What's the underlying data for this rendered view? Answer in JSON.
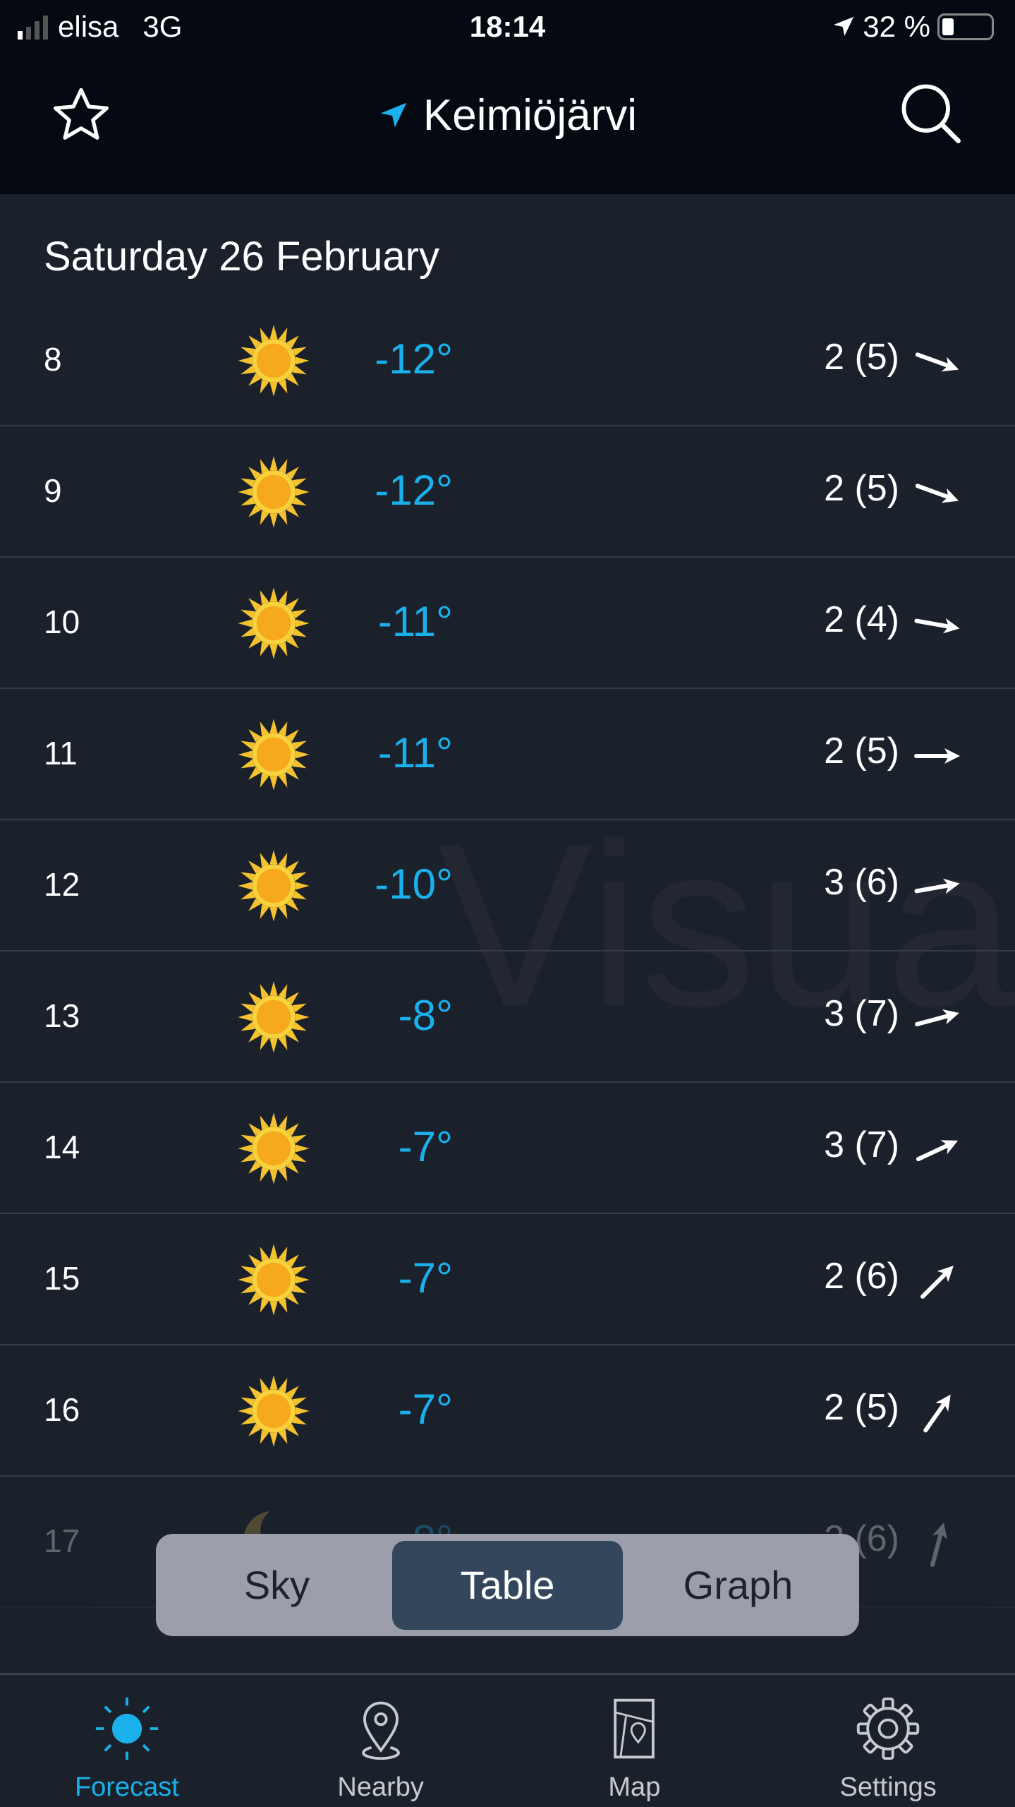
{
  "status": {
    "carrier": "elisa",
    "network": "3G",
    "time": "18:14",
    "battery": "32 %",
    "battery_level": 0.32
  },
  "header": {
    "title": "Keimiöjärvi",
    "favorite_icon": "star-icon",
    "search_icon": "search-icon",
    "location_icon": "location-arrow-icon",
    "accent": "#1ab0ec"
  },
  "date_heading": "Saturday 26 February",
  "watermark": "Visua",
  "rows": [
    {
      "hour": "8",
      "icon": "sun",
      "temp": "-12°",
      "wind": "2 (5)",
      "wind_dir_deg": 110
    },
    {
      "hour": "9",
      "icon": "sun",
      "temp": "-12°",
      "wind": "2 (5)",
      "wind_dir_deg": 110
    },
    {
      "hour": "10",
      "icon": "sun",
      "temp": "-11°",
      "wind": "2 (4)",
      "wind_dir_deg": 100
    },
    {
      "hour": "11",
      "icon": "sun",
      "temp": "-11°",
      "wind": "2 (5)",
      "wind_dir_deg": 90
    },
    {
      "hour": "12",
      "icon": "sun",
      "temp": "-10°",
      "wind": "3 (6)",
      "wind_dir_deg": 80
    },
    {
      "hour": "13",
      "icon": "sun",
      "temp": "-8°",
      "wind": "3 (7)",
      "wind_dir_deg": 75
    },
    {
      "hour": "14",
      "icon": "sun",
      "temp": "-7°",
      "wind": "3 (7)",
      "wind_dir_deg": 65
    },
    {
      "hour": "15",
      "icon": "sun",
      "temp": "-7°",
      "wind": "2 (6)",
      "wind_dir_deg": 45
    },
    {
      "hour": "16",
      "icon": "sun",
      "temp": "-7°",
      "wind": "2 (5)",
      "wind_dir_deg": 35
    },
    {
      "hour": "17",
      "icon": "moon",
      "temp": "-8°",
      "wind": "2 (6)",
      "wind_dir_deg": 15
    }
  ],
  "view_switch": {
    "options": [
      "Sky",
      "Table",
      "Graph"
    ],
    "selected": "Table"
  },
  "tabbar": [
    {
      "label": "Forecast",
      "icon": "sun-icon",
      "active": true
    },
    {
      "label": "Nearby",
      "icon": "location-pin-icon",
      "active": false
    },
    {
      "label": "Map",
      "icon": "map-icon",
      "active": false
    },
    {
      "label": "Settings",
      "icon": "gear-icon",
      "active": false
    }
  ]
}
